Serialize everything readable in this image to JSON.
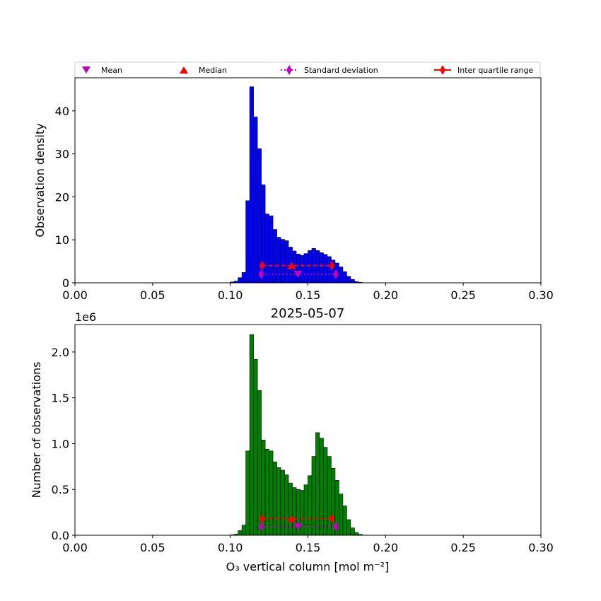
{
  "legend": {
    "items": [
      {
        "label": "Mean",
        "marker": "triangle-down",
        "color": "#bf00bf"
      },
      {
        "label": "Median",
        "marker": "triangle-up",
        "color": "#ff0000"
      },
      {
        "label": "Standard deviation",
        "marker": "diamond-dotted-line",
        "color": "#bf00bf"
      },
      {
        "label": "Inter quartile range",
        "marker": "diamond-dashed-line",
        "color": "#ff0000"
      }
    ]
  },
  "chart_data": [
    {
      "type": "bar",
      "title": "",
      "xlabel": "",
      "ylabel": "Observation density",
      "xlim": [
        0.0,
        0.3
      ],
      "ylim": [
        0,
        47.7
      ],
      "xticks": [
        "0.00",
        "0.05",
        "0.10",
        "0.15",
        "0.20",
        "0.25",
        "0.30"
      ],
      "yticks": [
        "0",
        "10",
        "20",
        "30",
        "40"
      ],
      "color": "#0000ff",
      "bin_start": 0.1,
      "bin_width": 0.0025,
      "values": [
        0.2,
        0.4,
        1.2,
        2.4,
        19.1,
        45.6,
        38.6,
        31.2,
        22.8,
        16.0,
        15.6,
        12.4,
        10.6,
        10.1,
        9.8,
        8.3,
        7.4,
        6.7,
        6.4,
        6.8,
        7.5,
        8.0,
        7.5,
        7.0,
        6.6,
        6.1,
        5.3,
        4.6,
        3.7,
        2.6,
        1.5,
        0.8,
        0.3,
        0.1
      ],
      "stats": {
        "mean": 0.1435,
        "median": 0.1395,
        "std_low": 0.12,
        "std_high": 0.168,
        "iqr_low": 0.1205,
        "iqr_high": 0.1655,
        "mean_y": 2.0,
        "median_y": 4.0,
        "std_y": 2.0,
        "iqr_y": 4.0
      }
    },
    {
      "type": "bar",
      "title": "2025-05-07",
      "xlabel": "O₃ vertical column [mol m⁻²]",
      "ylabel": "Number of observations",
      "offset_label": "1e6",
      "xlim": [
        0.0,
        0.3
      ],
      "ylim": [
        0,
        2.3
      ],
      "xticks": [
        "0.00",
        "0.05",
        "0.10",
        "0.15",
        "0.20",
        "0.25",
        "0.30"
      ],
      "yticks": [
        "0.0",
        "0.5",
        "1.0",
        "1.5",
        "2.0"
      ],
      "color": "#008000",
      "bin_start": 0.1,
      "bin_width": 0.0025,
      "values": [
        0.005,
        0.012,
        0.05,
        0.11,
        0.92,
        2.19,
        1.92,
        1.58,
        1.04,
        0.94,
        0.92,
        0.8,
        0.74,
        0.71,
        0.66,
        0.57,
        0.52,
        0.5,
        0.49,
        0.55,
        0.65,
        0.86,
        1.12,
        1.06,
        0.96,
        0.86,
        0.73,
        0.6,
        0.45,
        0.32,
        0.17,
        0.08,
        0.03,
        0.01
      ],
      "stats": {
        "mean": 0.1435,
        "median": 0.1395,
        "std_low": 0.12,
        "std_high": 0.168,
        "iqr_low": 0.1205,
        "iqr_high": 0.1655,
        "mean_y": 0.095,
        "median_y": 0.18,
        "std_y": 0.095,
        "iqr_y": 0.18
      }
    }
  ]
}
